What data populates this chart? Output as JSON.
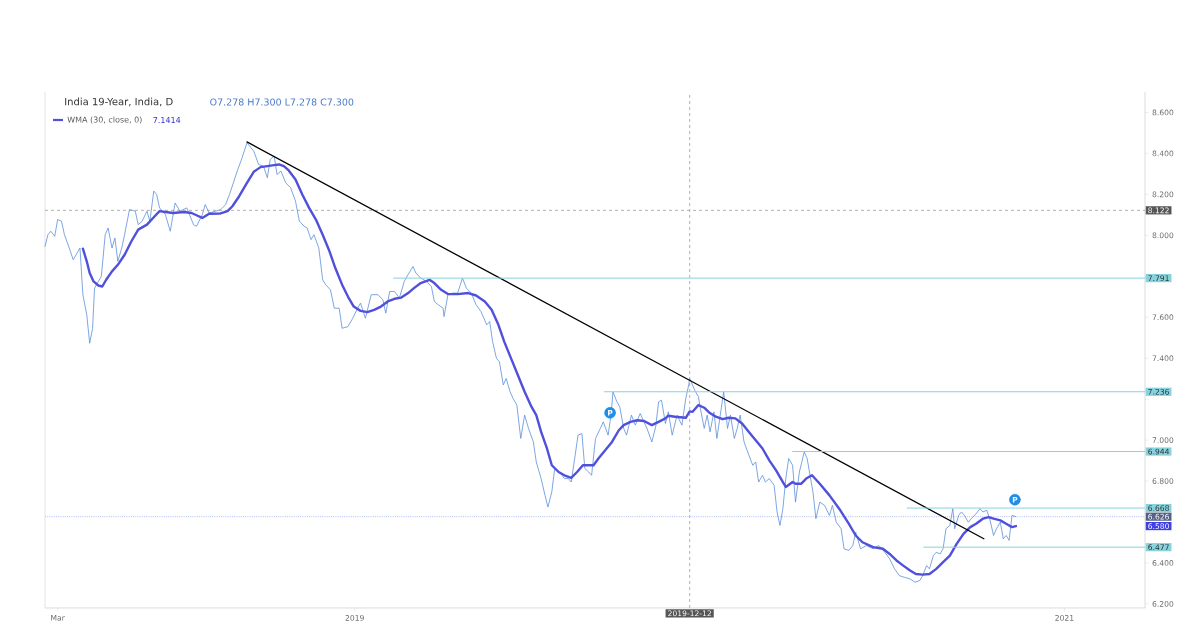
{
  "chart_data": {
    "type": "line",
    "title": "India 19-Year, India, D",
    "subtitle": "O7.278 H7.300 L7.278 C7.300",
    "annotations": [
      "7.1414",
      "6.580"
    ],
    "legend": "top left",
    "xlim": [
      "2018-02-16",
      "2021-03-25"
    ],
    "ylim": [
      6.18,
      8.7
    ],
    "xticks": [
      {
        "value": "2018-03-01",
        "label": "Mar"
      },
      {
        "value": "2019-01-01",
        "label": "2019"
      },
      {
        "value": "2020-01-01",
        "label": null
      },
      {
        "value": "2021-01-01",
        "label": "2021"
      }
    ],
    "yticks": [
      {
        "value": 6.2,
        "label": "6.200"
      },
      {
        "value": 6.4,
        "label": "6.400"
      },
      {
        "value": 6.6,
        "label": null
      },
      {
        "value": 6.8,
        "label": "6.800"
      },
      {
        "value": 7.0,
        "label": "7.000"
      },
      {
        "value": 7.2,
        "label": null
      },
      {
        "value": 7.4,
        "label": "7.400"
      },
      {
        "value": 7.6,
        "label": "7.600"
      },
      {
        "value": 7.8,
        "label": null
      },
      {
        "value": 8.0,
        "label": "8.000"
      },
      {
        "value": 8.2,
        "label": "8.200"
      },
      {
        "value": 8.4,
        "label": "8.400"
      },
      {
        "value": 8.6,
        "label": "8.600"
      }
    ],
    "ref_lines": [
      {
        "axis": "y",
        "value": 8.122,
        "label": "8.122",
        "color": "#9d9d9d",
        "line_style": "dashed"
      },
      {
        "axis": "x",
        "value": "2019-12-12",
        "label": "2019-12-12",
        "color": "#9d9d9d",
        "line_style": "dashed"
      },
      {
        "axis": "y",
        "value": 6.626,
        "label": "6.626",
        "color": "#9caff1",
        "line_style": "dotted"
      }
    ],
    "series": [
      {
        "color": "#5c8fdb",
        "x": [
          "2018-02-16",
          "2018-02-19",
          "2018-02-22",
          "2018-02-26",
          "2018-03-01",
          "2018-03-05",
          "2018-03-08",
          "2018-03-13",
          "2018-03-17",
          "2018-03-20",
          "2018-03-24",
          "2018-03-27",
          "2018-03-31",
          "2018-04-03",
          "2018-04-06",
          "2018-04-08",
          "2018-04-12",
          "2018-04-15",
          "2018-04-19",
          "2018-04-22",
          "2018-04-26",
          "2018-04-29",
          "2018-05-02",
          "2018-05-06",
          "2018-05-09",
          "2018-05-14",
          "2018-05-20",
          "2018-05-23",
          "2018-05-27",
          "2018-06-01",
          "2018-06-04",
          "2018-06-08",
          "2018-06-11",
          "2018-06-14",
          "2018-06-20",
          "2018-06-25",
          "2018-06-30",
          "2018-07-05",
          "2018-07-12",
          "2018-07-19",
          "2018-07-22",
          "2018-07-28",
          "2018-07-31",
          "2018-08-04",
          "2018-08-11",
          "2018-08-16",
          "2018-08-21",
          "2018-08-25",
          "2018-09-02",
          "2018-09-07",
          "2018-09-12",
          "2018-09-16",
          "2018-09-19",
          "2018-09-24",
          "2018-09-29",
          "2018-10-03",
          "2018-10-06",
          "2018-10-10",
          "2018-10-13",
          "2018-10-17",
          "2018-10-22",
          "2018-10-27",
          "2018-11-01",
          "2018-11-05",
          "2018-11-10",
          "2018-11-13",
          "2018-11-17",
          "2018-11-20",
          "2018-11-25",
          "2018-11-29",
          "2018-12-02",
          "2018-12-07",
          "2018-12-11",
          "2018-12-16",
          "2018-12-19",
          "2018-12-25",
          "2018-12-30",
          "2019-01-04",
          "2019-01-07",
          "2019-01-12",
          "2019-01-18",
          "2019-01-25",
          "2019-01-30",
          "2019-02-02",
          "2019-02-06",
          "2019-02-11",
          "2019-02-16",
          "2019-02-21",
          "2019-02-25",
          "2019-03-02",
          "2019-03-05",
          "2019-03-10",
          "2019-03-16",
          "2019-03-21",
          "2019-03-24",
          "2019-03-28",
          "2019-04-02",
          "2019-04-03",
          "2019-04-07",
          "2019-04-12",
          "2019-04-17",
          "2019-04-22",
          "2019-04-26",
          "2019-05-01",
          "2019-05-06",
          "2019-05-11",
          "2019-05-17",
          "2019-05-20",
          "2019-05-23",
          "2019-05-27",
          "2019-05-30",
          "2019-06-03",
          "2019-06-06",
          "2019-06-10",
          "2019-06-13",
          "2019-06-17",
          "2019-06-21",
          "2019-06-25",
          "2019-06-29",
          "2019-07-04",
          "2019-07-07",
          "2019-07-12",
          "2019-07-16",
          "2019-07-19",
          "2019-07-23",
          "2019-07-26",
          "2019-07-31",
          "2019-08-05",
          "2019-08-09",
          "2019-08-12",
          "2019-08-16",
          "2019-08-19",
          "2019-08-23",
          "2019-08-26",
          "2019-08-30",
          "2019-09-02",
          "2019-09-06",
          "2019-09-11",
          "2019-09-14",
          "2019-09-19",
          "2019-09-22",
          "2019-09-24",
          "2019-09-28",
          "2019-10-01",
          "2019-10-05",
          "2019-10-08",
          "2019-10-13",
          "2019-10-17",
          "2019-10-22",
          "2019-10-29",
          "2019-11-03",
          "2019-11-07",
          "2019-11-10",
          "2019-11-13",
          "2019-11-17",
          "2019-11-20",
          "2019-11-24",
          "2019-11-29",
          "2019-12-04",
          "2019-12-08",
          "2019-12-11",
          "2019-12-12",
          "2019-12-18",
          "2019-12-21",
          "2019-12-23",
          "2019-12-27",
          "2019-12-30",
          "2020-01-02",
          "2020-01-06",
          "2020-01-09",
          "2020-01-13",
          "2020-01-16",
          "2020-01-20",
          "2020-01-23",
          "2020-01-27",
          "2020-01-30",
          "2020-02-02",
          "2020-02-06",
          "2020-02-11",
          "2020-02-15",
          "2020-02-18",
          "2020-02-21",
          "2020-02-25",
          "2020-02-28",
          "2020-03-03",
          "2020-03-08",
          "2020-03-11",
          "2020-03-14",
          "2020-03-17",
          "2020-03-20",
          "2020-03-23",
          "2020-03-27",
          "2020-03-30",
          "2020-04-03",
          "2020-04-08",
          "2020-04-11",
          "2020-04-17",
          "2020-04-20",
          "2020-04-24",
          "2020-04-29",
          "2020-05-04",
          "2020-05-07",
          "2020-05-11",
          "2020-05-16",
          "2020-05-19",
          "2020-05-24",
          "2020-05-28",
          "2020-05-31",
          "2020-06-05",
          "2020-06-11",
          "2020-06-18",
          "2020-06-24",
          "2020-06-30",
          "2020-07-05",
          "2020-07-10",
          "2020-07-15",
          "2020-07-20",
          "2020-07-26",
          "2020-07-31",
          "2020-08-05",
          "2020-08-08",
          "2020-08-12",
          "2020-08-15",
          "2020-08-19",
          "2020-08-22",
          "2020-08-26",
          "2020-08-29",
          "2020-09-01",
          "2020-09-05",
          "2020-09-08",
          "2020-09-10",
          "2020-09-14",
          "2020-09-17",
          "2020-09-20",
          "2020-09-24",
          "2020-09-27",
          "2020-10-02",
          "2020-10-06",
          "2020-10-09",
          "2020-10-13",
          "2020-10-16",
          "2020-10-20",
          "2020-10-23",
          "2020-10-27",
          "2020-10-30",
          "2020-11-02",
          "2020-11-05",
          "2020-11-08",
          "2020-11-12"
        ],
        "values": [
          7.946,
          8.003,
          8.02,
          7.995,
          8.077,
          8.069,
          8.003,
          7.938,
          7.881,
          7.905,
          7.938,
          7.71,
          7.612,
          7.473,
          7.546,
          7.742,
          7.775,
          7.799,
          8.003,
          8.036,
          7.938,
          7.987,
          7.873,
          7.938,
          8.003,
          8.126,
          8.118,
          8.052,
          8.069,
          8.118,
          8.069,
          8.216,
          8.199,
          8.134,
          8.101,
          8.02,
          8.158,
          8.118,
          8.134,
          8.052,
          8.044,
          8.101,
          8.15,
          8.109,
          8.118,
          8.126,
          8.15,
          8.199,
          8.314,
          8.379,
          8.452,
          8.428,
          8.411,
          8.346,
          8.338,
          8.281,
          8.371,
          8.387,
          8.297,
          8.314,
          8.256,
          8.232,
          8.167,
          8.069,
          8.044,
          8.036,
          7.979,
          8.003,
          7.938,
          7.783,
          7.759,
          7.734,
          7.644,
          7.644,
          7.546,
          7.554,
          7.595,
          7.644,
          7.669,
          7.595,
          7.71,
          7.71,
          7.685,
          7.62,
          7.726,
          7.726,
          7.693,
          7.775,
          7.808,
          7.848,
          7.816,
          7.791,
          7.775,
          7.75,
          7.677,
          7.661,
          7.644,
          7.603,
          7.71,
          7.718,
          7.718,
          7.791,
          7.742,
          7.718,
          7.661,
          7.628,
          7.563,
          7.579,
          7.481,
          7.399,
          7.383,
          7.269,
          7.301,
          7.236,
          7.204,
          7.171,
          7.008,
          7.122,
          7.057,
          6.991,
          6.893,
          6.812,
          6.73,
          6.673,
          6.747,
          6.861,
          6.844,
          6.812,
          6.812,
          6.795,
          6.925,
          7.024,
          7.032,
          6.861,
          6.844,
          6.828,
          7.008,
          7.057,
          7.089,
          7.024,
          7.122,
          7.236,
          7.187,
          7.163,
          7.057,
          7.024,
          7.122,
          7.073,
          7.13,
          7.057,
          6.991,
          7.065,
          7.187,
          7.195,
          7.081,
          7.138,
          7.024,
          7.122,
          7.073,
          7.204,
          7.269,
          7.3,
          7.236,
          7.212,
          7.155,
          7.057,
          7.122,
          7.04,
          7.138,
          7.008,
          7.138,
          7.236,
          7.057,
          7.122,
          7.008,
          7.057,
          7.122,
          6.991,
          6.926,
          6.877,
          6.893,
          6.795,
          6.828,
          6.795,
          6.812,
          6.779,
          6.649,
          6.583,
          6.665,
          6.812,
          6.91,
          6.877,
          6.697,
          6.844,
          6.942,
          6.91,
          6.746,
          6.616,
          6.697,
          6.681,
          6.632,
          6.681,
          6.599,
          6.567,
          6.469,
          6.461,
          6.485,
          6.55,
          6.469,
          6.485,
          6.469,
          6.485,
          6.452,
          6.42,
          6.371,
          6.338,
          6.33,
          6.322,
          6.306,
          6.314,
          6.338,
          6.387,
          6.371,
          6.436,
          6.452,
          6.444,
          6.469,
          6.567,
          6.583,
          6.665,
          6.567,
          6.632,
          6.649,
          6.632,
          6.599,
          6.616,
          6.64,
          6.665,
          6.649,
          6.657,
          6.616,
          6.534,
          6.567,
          6.599,
          6.518,
          6.534,
          6.51,
          6.632,
          6.626
        ]
      },
      {
        "name": "WMA (30, close, 0)",
        "color": "#5050dd",
        "x": [
          "2018-03-27",
          "2018-03-31",
          "2018-04-03",
          "2018-04-07",
          "2018-04-12",
          "2018-04-16",
          "2018-04-20",
          "2018-04-26",
          "2018-05-02",
          "2018-05-09",
          "2018-05-16",
          "2018-05-23",
          "2018-06-01",
          "2018-06-09",
          "2018-06-14",
          "2018-06-20",
          "2018-06-28",
          "2018-07-09",
          "2018-07-17",
          "2018-07-22",
          "2018-07-28",
          "2018-08-04",
          "2018-08-15",
          "2018-08-23",
          "2018-08-28",
          "2018-09-04",
          "2018-09-12",
          "2018-09-19",
          "2018-09-26",
          "2018-10-03",
          "2018-10-10",
          "2018-10-15",
          "2018-10-20",
          "2018-10-25",
          "2018-11-01",
          "2018-11-08",
          "2018-11-15",
          "2018-11-22",
          "2018-11-29",
          "2018-12-06",
          "2018-12-12",
          "2018-12-19",
          "2018-12-25",
          "2018-12-31",
          "2019-01-07",
          "2019-01-14",
          "2019-01-21",
          "2019-01-28",
          "2019-02-04",
          "2019-02-11",
          "2019-02-18",
          "2019-02-25",
          "2019-03-03",
          "2019-03-10",
          "2019-03-19",
          "2019-03-24",
          "2019-03-31",
          "2019-04-07",
          "2019-04-17",
          "2019-04-28",
          "2019-05-06",
          "2019-05-15",
          "2019-05-22",
          "2019-05-29",
          "2019-06-04",
          "2019-06-11",
          "2019-06-18",
          "2019-06-25",
          "2019-07-02",
          "2019-07-07",
          "2019-07-12",
          "2019-07-18",
          "2019-07-23",
          "2019-07-30",
          "2019-08-05",
          "2019-08-12",
          "2019-08-18",
          "2019-08-24",
          "2019-09-04",
          "2019-09-09",
          "2019-09-16",
          "2019-09-23",
          "2019-09-30",
          "2019-10-05",
          "2019-10-12",
          "2019-10-19",
          "2019-10-26",
          "2019-11-03",
          "2019-11-10",
          "2019-11-17",
          "2019-11-20",
          "2019-11-27",
          "2019-12-08",
          "2019-12-12",
          "2019-12-15",
          "2019-12-21",
          "2019-12-27",
          "2020-01-01",
          "2020-01-08",
          "2020-01-15",
          "2020-01-21",
          "2020-01-28",
          "2020-02-04",
          "2020-02-11",
          "2020-02-18",
          "2020-02-25",
          "2020-03-03",
          "2020-03-10",
          "2020-03-17",
          "2020-03-20",
          "2020-03-27",
          "2020-03-30",
          "2020-04-05",
          "2020-04-10",
          "2020-04-16",
          "2020-04-24",
          "2020-05-04",
          "2020-05-14",
          "2020-05-24",
          "2020-05-31",
          "2020-06-07",
          "2020-06-18",
          "2020-06-28",
          "2020-07-05",
          "2020-07-12",
          "2020-07-19",
          "2020-07-26",
          "2020-08-01",
          "2020-08-08",
          "2020-08-15",
          "2020-08-22",
          "2020-08-29",
          "2020-09-05",
          "2020-09-12",
          "2020-09-19",
          "2020-09-26",
          "2020-10-02",
          "2020-10-09",
          "2020-10-15",
          "2020-10-20",
          "2020-10-27",
          "2020-11-02",
          "2020-11-08",
          "2020-11-12"
        ],
        "values": [
          7.935,
          7.873,
          7.816,
          7.775,
          7.755,
          7.75,
          7.783,
          7.824,
          7.856,
          7.905,
          7.971,
          8.028,
          8.052,
          8.093,
          8.118,
          8.114,
          8.109,
          8.114,
          8.109,
          8.098,
          8.085,
          8.105,
          8.106,
          8.118,
          8.142,
          8.191,
          8.256,
          8.31,
          8.333,
          8.338,
          8.343,
          8.346,
          8.338,
          8.317,
          8.273,
          8.199,
          8.134,
          8.077,
          8.003,
          7.922,
          7.84,
          7.759,
          7.701,
          7.652,
          7.631,
          7.625,
          7.636,
          7.652,
          7.677,
          7.69,
          7.696,
          7.718,
          7.742,
          7.767,
          7.783,
          7.767,
          7.734,
          7.713,
          7.713,
          7.718,
          7.706,
          7.677,
          7.636,
          7.563,
          7.481,
          7.399,
          7.318,
          7.236,
          7.163,
          7.122,
          7.04,
          6.959,
          6.877,
          6.844,
          6.828,
          6.815,
          6.844,
          6.877,
          6.877,
          6.91,
          6.95,
          6.991,
          7.048,
          7.073,
          7.089,
          7.097,
          7.093,
          7.073,
          7.089,
          7.106,
          7.119,
          7.114,
          7.109,
          7.14,
          7.138,
          7.171,
          7.158,
          7.135,
          7.114,
          7.102,
          7.109,
          7.106,
          7.081,
          7.04,
          6.999,
          6.959,
          6.901,
          6.852,
          6.795,
          6.771,
          6.795,
          6.787,
          6.787,
          6.812,
          6.828,
          6.787,
          6.73,
          6.665,
          6.591,
          6.534,
          6.501,
          6.477,
          6.469,
          6.444,
          6.412,
          6.387,
          6.363,
          6.346,
          6.343,
          6.346,
          6.371,
          6.404,
          6.436,
          6.493,
          6.542,
          6.575,
          6.591,
          6.616,
          6.624,
          6.616,
          6.608,
          6.591,
          6.575,
          6.58
        ]
      },
      {
        "color": "#000000",
        "x": [
          "2018-09-12",
          "2020-10-10"
        ],
        "values": [
          8.456,
          6.518
        ]
      },
      {
        "color": "#86d3de",
        "x": [
          "2019-02-10",
          "2021-03-25"
        ],
        "values": [
          7.791,
          7.791
        ],
        "value_labels": [
          null,
          "7.791"
        ]
      },
      {
        "color": "#86d3de",
        "x": [
          "2019-09-15",
          "2021-03-25"
        ],
        "values": [
          7.236,
          7.236
        ],
        "value_labels": [
          null,
          "7.236"
        ]
      },
      {
        "color": "#86d3de",
        "x": [
          "2020-03-27",
          "2021-03-25"
        ],
        "values": [
          6.944,
          6.944
        ],
        "value_labels": [
          null,
          "6.944"
        ]
      },
      {
        "color": "#86d3de",
        "x": [
          "2020-07-23",
          "2021-03-25"
        ],
        "values": [
          6.668,
          6.668
        ],
        "value_labels": [
          null,
          "6.668"
        ]
      },
      {
        "color": "#86d3de",
        "x": [
          "2020-08-09",
          "2021-03-25"
        ],
        "values": [
          6.477,
          6.477
        ],
        "value_labels": [
          null,
          "6.477"
        ]
      },
      {
        "type": "scatter",
        "marker": "circle",
        "color": "#1e8fe6",
        "x": [
          "2019-09-21",
          "2020-11-11"
        ],
        "values": [
          7.133,
          6.709
        ],
        "value_labels": [
          "P",
          "P"
        ]
      }
    ]
  }
}
